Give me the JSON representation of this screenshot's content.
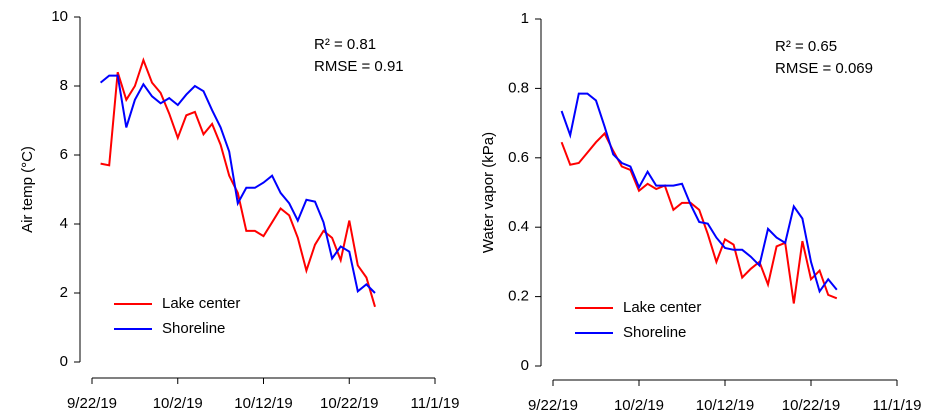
{
  "chart_data": [
    {
      "type": "line",
      "ylabel": "Air temp (°C)",
      "annotations": [
        "R² = 0.81",
        "RMSE = 0.91"
      ],
      "x": [
        "9/23/19",
        "9/24/19",
        "9/25/19",
        "9/26/19",
        "9/27/19",
        "9/28/19",
        "9/29/19",
        "9/30/19",
        "10/1/19",
        "10/2/19",
        "10/3/19",
        "10/4/19",
        "10/5/19",
        "10/6/19",
        "10/7/19",
        "10/8/19",
        "10/9/19",
        "10/10/19",
        "10/11/19",
        "10/12/19",
        "10/13/19",
        "10/14/19",
        "10/15/19",
        "10/16/19",
        "10/17/19",
        "10/18/19",
        "10/19/19",
        "10/20/19",
        "10/21/19",
        "10/22/19",
        "10/23/19",
        "10/24/19",
        "10/25/19"
      ],
      "series": [
        {
          "name": "Lake center",
          "color": "#ff0000",
          "values": [
            5.75,
            5.7,
            8.4,
            7.6,
            8.0,
            8.75,
            8.1,
            7.8,
            7.2,
            6.5,
            7.15,
            7.25,
            6.6,
            6.9,
            6.3,
            5.4,
            4.9,
            3.8,
            3.8,
            3.65,
            4.05,
            4.45,
            4.25,
            3.6,
            2.65,
            3.4,
            3.8,
            3.6,
            2.95,
            4.1,
            2.8,
            2.45,
            1.6
          ]
        },
        {
          "name": "Shoreline",
          "color": "#0000ff",
          "values": [
            8.1,
            8.3,
            8.3,
            6.8,
            7.6,
            8.05,
            7.7,
            7.5,
            7.65,
            7.45,
            7.75,
            8.0,
            7.85,
            7.3,
            6.8,
            6.1,
            4.6,
            5.05,
            5.05,
            5.2,
            5.4,
            4.9,
            4.6,
            4.1,
            4.7,
            4.65,
            4.05,
            3.0,
            3.35,
            3.2,
            2.05,
            2.25,
            2.0
          ]
        }
      ],
      "xlim": [
        "9/22/19",
        "11/1/19"
      ],
      "xticks": [
        "9/22/19",
        "10/2/19",
        "10/12/19",
        "10/22/19",
        "11/1/19"
      ],
      "ylim": [
        0,
        10
      ],
      "yticks": [
        0,
        2,
        4,
        6,
        8,
        10
      ],
      "legend": "lower left"
    },
    {
      "type": "line",
      "ylabel": "Water vapor (kPa)",
      "annotations": [
        "R² = 0.65",
        "RMSE = 0.069"
      ],
      "x": [
        "9/23/19",
        "9/24/19",
        "9/25/19",
        "9/26/19",
        "9/27/19",
        "9/28/19",
        "9/29/19",
        "9/30/19",
        "10/1/19",
        "10/2/19",
        "10/3/19",
        "10/4/19",
        "10/5/19",
        "10/6/19",
        "10/7/19",
        "10/8/19",
        "10/9/19",
        "10/10/19",
        "10/11/19",
        "10/12/19",
        "10/13/19",
        "10/14/19",
        "10/15/19",
        "10/16/19",
        "10/17/19",
        "10/18/19",
        "10/19/19",
        "10/20/19",
        "10/21/19",
        "10/22/19",
        "10/23/19",
        "10/24/19",
        "10/25/19"
      ],
      "series": [
        {
          "name": "Lake center",
          "color": "#ff0000",
          "values": [
            0.645,
            0.58,
            0.585,
            0.615,
            0.645,
            0.67,
            0.62,
            0.575,
            0.565,
            0.505,
            0.525,
            0.51,
            0.52,
            0.45,
            0.47,
            0.47,
            0.45,
            0.38,
            0.3,
            0.365,
            0.35,
            0.255,
            0.28,
            0.3,
            0.235,
            0.345,
            0.355,
            0.18,
            0.36,
            0.25,
            0.275,
            0.205,
            0.195
          ]
        },
        {
          "name": "Shoreline",
          "color": "#0000ff",
          "values": [
            0.735,
            0.665,
            0.785,
            0.785,
            0.765,
            0.69,
            0.61,
            0.585,
            0.575,
            0.515,
            0.56,
            0.52,
            0.52,
            0.52,
            0.525,
            0.465,
            0.415,
            0.41,
            0.37,
            0.34,
            0.335,
            0.335,
            0.315,
            0.29,
            0.395,
            0.37,
            0.355,
            0.46,
            0.425,
            0.3,
            0.215,
            0.25,
            0.22
          ]
        }
      ],
      "xlim": [
        "9/22/19",
        "11/1/19"
      ],
      "xticks": [
        "9/22/19",
        "10/2/19",
        "10/12/19",
        "10/22/19",
        "11/1/19"
      ],
      "ylim": [
        0,
        1
      ],
      "yticks": [
        0,
        0.2,
        0.4,
        0.6,
        0.8,
        1
      ],
      "legend": "lower left"
    }
  ]
}
